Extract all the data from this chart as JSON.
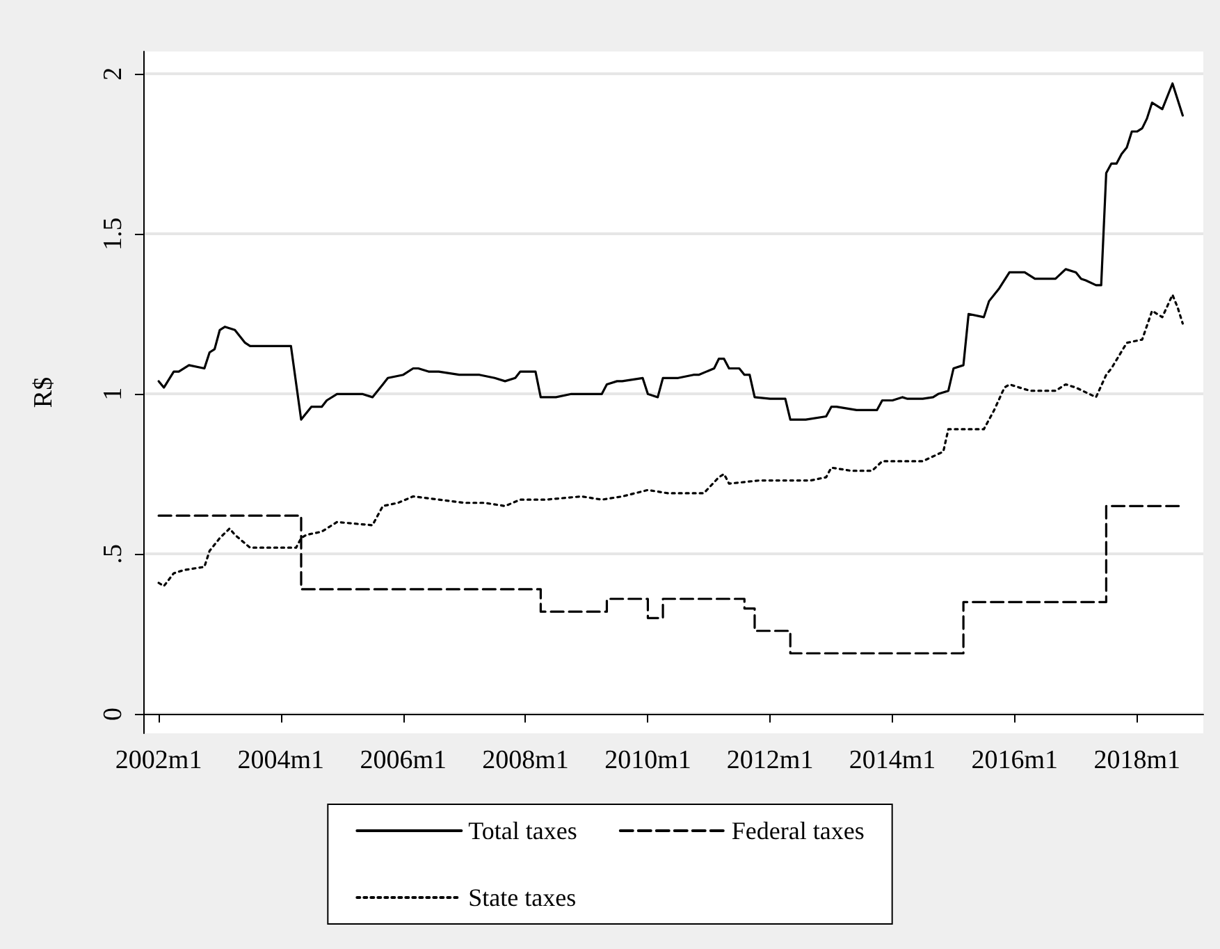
{
  "chart_data": {
    "type": "line",
    "ylabel": "R$",
    "xlim": [
      "2001-10",
      "2019-02"
    ],
    "ylim": [
      -0.06,
      2.07
    ],
    "xticks": [
      {
        "value": "2002-01",
        "label": "2002m1"
      },
      {
        "value": "2004-01",
        "label": "2004m1"
      },
      {
        "value": "2006-01",
        "label": "2006m1"
      },
      {
        "value": "2008-01",
        "label": "2008m1"
      },
      {
        "value": "2010-01",
        "label": "2010m1"
      },
      {
        "value": "2012-01",
        "label": "2012m1"
      },
      {
        "value": "2014-01",
        "label": "2014m1"
      },
      {
        "value": "2016-01",
        "label": "2016m1"
      },
      {
        "value": "2018-01",
        "label": "2018m1"
      }
    ],
    "yticks": [
      {
        "value": 0,
        "label": "0"
      },
      {
        "value": 0.5,
        "label": ".5"
      },
      {
        "value": 1,
        "label": "1"
      },
      {
        "value": 1.5,
        "label": "1.5"
      },
      {
        "value": 2,
        "label": "2"
      }
    ],
    "grid": "y",
    "legend": "bottom",
    "marker": "none",
    "series": [
      {
        "name": "Total taxes",
        "color": "#000000",
        "line_style": "solid",
        "x": [
          "2002-01",
          "2002-02",
          "2002-04",
          "2002-05",
          "2002-07",
          "2002-10",
          "2002-11",
          "2002-12",
          "2003-01",
          "2003-02",
          "2003-04",
          "2003-06",
          "2003-07",
          "2003-09",
          "2004-03",
          "2004-05",
          "2004-07",
          "2004-09",
          "2004-10",
          "2004-12",
          "2005-05",
          "2005-07",
          "2005-09",
          "2005-10",
          "2006-01",
          "2006-03",
          "2006-04",
          "2006-06",
          "2006-08",
          "2006-12",
          "2007-04",
          "2007-07",
          "2007-09",
          "2007-11",
          "2007-12",
          "2008-03",
          "2008-04",
          "2008-07",
          "2008-10",
          "2008-12",
          "2009-03",
          "2009-04",
          "2009-05",
          "2009-07",
          "2009-08",
          "2009-12",
          "2010-01",
          "2010-03",
          "2010-04",
          "2010-07",
          "2010-10",
          "2010-11",
          "2011-02",
          "2011-03",
          "2011-04",
          "2011-05",
          "2011-07",
          "2011-08",
          "2011-09",
          "2011-10",
          "2012-01",
          "2012-04",
          "2012-05",
          "2012-08",
          "2012-12",
          "2013-01",
          "2013-02",
          "2013-06",
          "2013-10",
          "2013-11",
          "2014-01",
          "2014-03",
          "2014-04",
          "2014-07",
          "2014-09",
          "2014-10",
          "2014-12",
          "2015-01",
          "2015-03",
          "2015-04",
          "2015-07",
          "2015-08",
          "2015-10",
          "2015-12",
          "2016-01",
          "2016-03",
          "2016-05",
          "2016-09",
          "2016-11",
          "2017-01",
          "2017-02",
          "2017-03",
          "2017-05",
          "2017-06",
          "2017-07",
          "2017-08",
          "2017-09",
          "2017-10",
          "2017-11",
          "2017-12",
          "2018-01",
          "2018-02",
          "2018-03",
          "2018-04",
          "2018-06",
          "2018-08",
          "2018-10"
        ],
        "values": [
          1.04,
          1.02,
          1.07,
          1.07,
          1.09,
          1.08,
          1.13,
          1.14,
          1.2,
          1.21,
          1.2,
          1.16,
          1.15,
          1.15,
          1.15,
          0.92,
          0.96,
          0.96,
          0.98,
          1.0,
          1.0,
          0.99,
          1.03,
          1.05,
          1.06,
          1.08,
          1.08,
          1.07,
          1.07,
          1.06,
          1.06,
          1.05,
          1.04,
          1.05,
          1.07,
          1.07,
          0.99,
          0.99,
          1.0,
          1.0,
          1.0,
          1.0,
          1.03,
          1.04,
          1.04,
          1.05,
          1.0,
          0.99,
          1.05,
          1.05,
          1.06,
          1.06,
          1.08,
          1.11,
          1.11,
          1.08,
          1.08,
          1.06,
          1.06,
          0.99,
          0.985,
          0.985,
          0.92,
          0.92,
          0.93,
          0.96,
          0.96,
          0.95,
          0.95,
          0.98,
          0.98,
          0.99,
          0.985,
          0.985,
          0.99,
          1.0,
          1.01,
          1.08,
          1.09,
          1.25,
          1.24,
          1.29,
          1.33,
          1.38,
          1.38,
          1.38,
          1.36,
          1.36,
          1.39,
          1.38,
          1.36,
          1.355,
          1.34,
          1.34,
          1.69,
          1.72,
          1.72,
          1.75,
          1.77,
          1.82,
          1.82,
          1.83,
          1.86,
          1.91,
          1.89,
          1.97,
          1.87
        ]
      },
      {
        "name": "Federal taxes",
        "type": "step",
        "color": "#000000",
        "line_style": "dashed",
        "x": [
          "2002-01",
          "2004-05",
          "2008-04",
          "2009-05",
          "2010-01",
          "2010-04",
          "2011-08",
          "2011-10",
          "2012-05",
          "2015-03",
          "2017-07",
          "2018-10"
        ],
        "values": [
          0.62,
          0.39,
          0.32,
          0.36,
          0.3,
          0.36,
          0.33,
          0.26,
          0.19,
          0.35,
          0.65,
          0.65
        ]
      },
      {
        "name": "State taxes",
        "color": "#000000",
        "line_style": "dotted",
        "x": [
          "2002-01",
          "2002-02",
          "2002-04",
          "2002-06",
          "2002-10",
          "2002-11",
          "2003-01",
          "2003-03",
          "2003-04",
          "2003-07",
          "2003-09",
          "2004-04",
          "2004-05",
          "2004-06",
          "2004-09",
          "2004-12",
          "2005-07",
          "2005-09",
          "2005-12",
          "2006-03",
          "2006-08",
          "2007-01",
          "2007-05",
          "2007-09",
          "2007-12",
          "2008-05",
          "2008-12",
          "2009-04",
          "2009-08",
          "2010-01",
          "2010-05",
          "2010-08",
          "2010-12",
          "2011-03",
          "2011-04",
          "2011-05",
          "2011-11",
          "2012-09",
          "2012-12",
          "2013-01",
          "2013-05",
          "2013-09",
          "2013-11",
          "2014-02",
          "2014-07",
          "2014-11",
          "2014-12",
          "2015-07",
          "2015-09",
          "2015-11",
          "2015-12",
          "2016-04",
          "2016-09",
          "2016-11",
          "2017-01",
          "2017-05",
          "2017-07",
          "2017-08",
          "2017-11",
          "2018-02",
          "2018-04",
          "2018-06",
          "2018-08",
          "2018-09",
          "2018-10"
        ],
        "values": [
          0.41,
          0.4,
          0.44,
          0.45,
          0.46,
          0.51,
          0.55,
          0.58,
          0.56,
          0.52,
          0.52,
          0.52,
          0.55,
          0.56,
          0.57,
          0.6,
          0.59,
          0.65,
          0.66,
          0.68,
          0.67,
          0.66,
          0.66,
          0.65,
          0.67,
          0.67,
          0.68,
          0.67,
          0.68,
          0.7,
          0.69,
          0.69,
          0.69,
          0.74,
          0.75,
          0.72,
          0.73,
          0.73,
          0.74,
          0.77,
          0.76,
          0.76,
          0.79,
          0.79,
          0.79,
          0.82,
          0.89,
          0.89,
          0.95,
          1.02,
          1.03,
          1.01,
          1.01,
          1.03,
          1.02,
          0.99,
          1.06,
          1.08,
          1.16,
          1.17,
          1.26,
          1.24,
          1.31,
          1.27,
          1.22
        ]
      }
    ]
  }
}
